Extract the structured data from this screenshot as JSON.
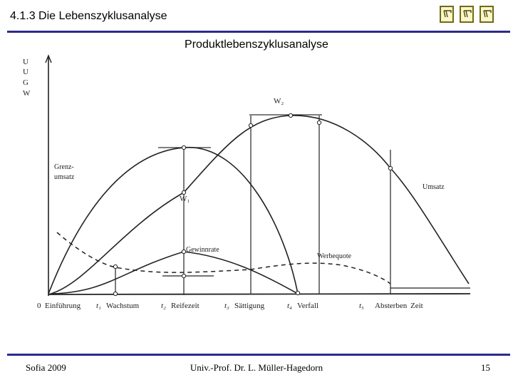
{
  "header": {
    "title": "4.1.3 Die Lebenszyklusanalyse",
    "nav_icons": [
      "nav-first-icon",
      "nav-prev-icon",
      "nav-next-icon"
    ]
  },
  "slide": {
    "subtitle": "Produktlebenszyklusanalyse"
  },
  "figure": {
    "y_axis_labels": [
      "U",
      "U",
      "G",
      "W"
    ],
    "curve_labels": {
      "w2": "W₂",
      "grenzumsatz_1": "Grenz-",
      "grenzumsatz_2": "umsatz",
      "w1": "W₁",
      "umsatz": "Umsatz",
      "gewinnrate": "Gewinnrate",
      "werbequote": "Werbequote"
    },
    "x_axis_labels": {
      "origin": "0",
      "phase1": "Einführung",
      "t1": "t₁",
      "phase2": "Wachstum",
      "t2": "t₂",
      "phase3": "Reifezeit",
      "t3": "t₃",
      "phase4": "Sättigung",
      "t4": "t₄",
      "phase5": "Verfall",
      "t5": "t₅",
      "phase6": "Absterben",
      "zeit": "Zeit"
    }
  },
  "footer": {
    "left": "Sofia 2009",
    "center": "Univ.-Prof. Dr. L. Müller-Hagedorn",
    "page": "15"
  },
  "colors": {
    "accent_rule": "#2b2b8c",
    "icon_fill": "#fbf6c7",
    "icon_border": "#6e6a1a"
  }
}
